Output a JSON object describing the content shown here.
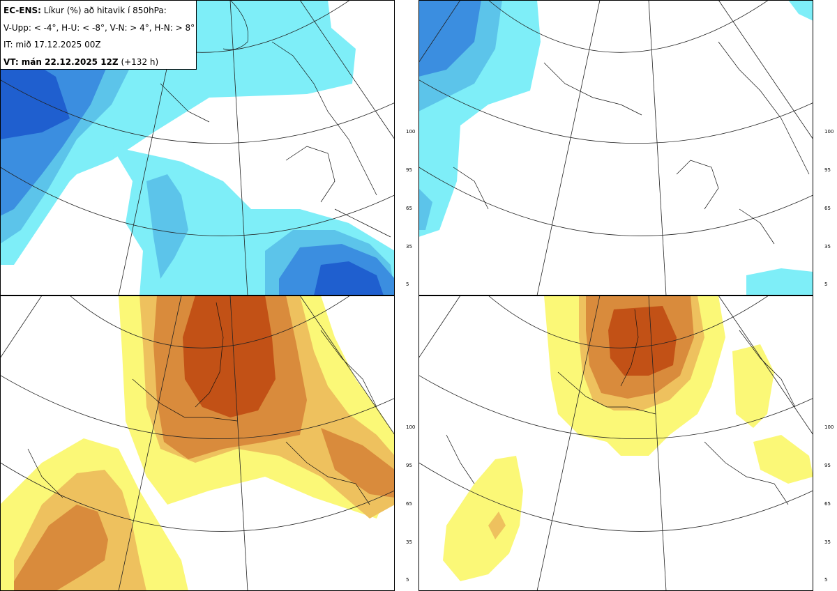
{
  "header": {
    "model": "EC-ENS:",
    "title": "Líkur (%) að hitavik í 850hPa:",
    "thresholds": "V-Upp: < -4°, H-U: < -8°, V-N: > 4°, H-N: > 8°",
    "init_time": "IT: mið 17.12.2025 00Z",
    "valid_prefix": "VT: mán 22.12.2025 12Z",
    "valid_suffix": "(+132 h)"
  },
  "colorbar": {
    "ticks": [
      "100",
      "95",
      "65",
      "35",
      "5"
    ],
    "cold_colors": [
      "#1f5fcf",
      "#3b8ee0",
      "#5cc4ea",
      "#7eeef8"
    ],
    "warm_colors": [
      "#c25116",
      "#d98b3c",
      "#eec15e",
      "#fbf877"
    ]
  },
  "panels": [
    {
      "name": "V-Upp",
      "scheme": "cold"
    },
    {
      "name": "H-U",
      "scheme": "cold"
    },
    {
      "name": "V-N",
      "scheme": "warm"
    },
    {
      "name": "H-N",
      "scheme": "warm"
    }
  ]
}
